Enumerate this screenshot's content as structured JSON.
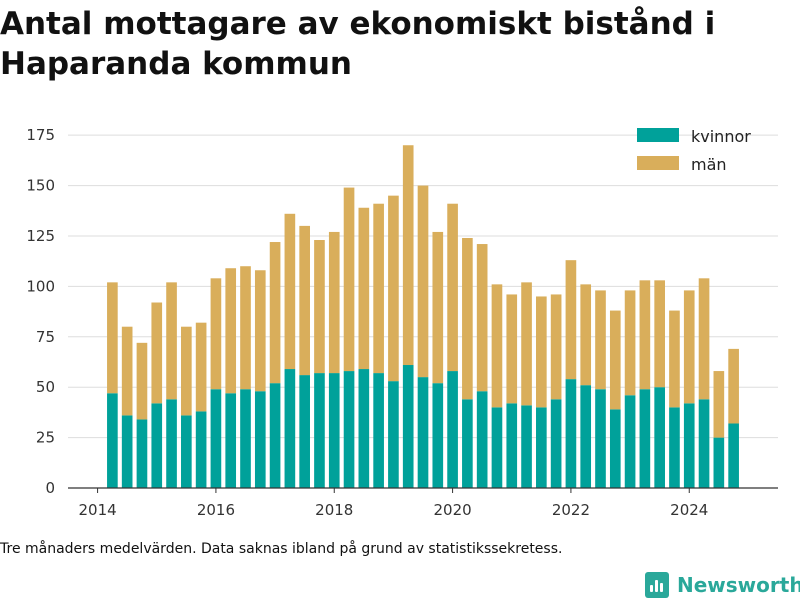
{
  "title": "Antal mottagare av ekonomiskt bistånd i Haparanda kommun",
  "note": "Tre månaders medelvärden. Data saknas ibland på grund av statistikssekretess.",
  "brand": "Newsworthy",
  "colors": {
    "kvinnor": "#00a19a",
    "man": "#d9ae5b",
    "grid": "#dddddd",
    "axis": "#333333"
  },
  "chart_data": {
    "type": "bar",
    "stacked": true,
    "x": [
      "2014-04",
      "2014-07",
      "2014-10",
      "2015-01",
      "2015-04",
      "2015-07",
      "2015-10",
      "2016-01",
      "2016-04",
      "2016-07",
      "2016-10",
      "2017-01",
      "2017-04",
      "2017-07",
      "2017-10",
      "2018-01",
      "2018-04",
      "2018-07",
      "2018-10",
      "2019-01",
      "2019-04",
      "2019-07",
      "2019-10",
      "2020-01",
      "2020-04",
      "2020-07",
      "2020-10",
      "2021-01",
      "2021-04",
      "2021-07",
      "2021-10",
      "2022-01",
      "2022-04",
      "2022-07",
      "2022-10",
      "2023-01",
      "2023-04",
      "2023-07",
      "2023-10",
      "2024-01",
      "2024-04",
      "2024-07",
      "2024-10"
    ],
    "series": [
      {
        "name": "kvinnor",
        "values": [
          47,
          36,
          34,
          42,
          44,
          36,
          38,
          49,
          47,
          49,
          48,
          52,
          59,
          56,
          57,
          57,
          58,
          59,
          57,
          53,
          61,
          55,
          52,
          58,
          44,
          48,
          40,
          42,
          41,
          40,
          44,
          54,
          51,
          49,
          39,
          46,
          49,
          50,
          40,
          42,
          44,
          25,
          32
        ]
      },
      {
        "name": "män",
        "values": [
          55,
          44,
          38,
          50,
          58,
          44,
          44,
          55,
          62,
          61,
          60,
          70,
          77,
          74,
          66,
          70,
          91,
          80,
          84,
          92,
          109,
          95,
          75,
          83,
          80,
          73,
          61,
          54,
          61,
          55,
          52,
          59,
          50,
          49,
          49,
          52,
          54,
          53,
          48,
          56,
          60,
          33,
          37
        ]
      }
    ],
    "xlim": [
      "2013-07",
      "2025-07"
    ],
    "x_ticks": [
      "2014",
      "2016",
      "2018",
      "2020",
      "2022",
      "2024"
    ],
    "ylim": [
      0,
      185
    ],
    "y_ticks": [
      0,
      25,
      50,
      75,
      100,
      125,
      150,
      175
    ],
    "grid": "horizontal",
    "legend_placement": "top-right",
    "xlabel": "",
    "ylabel": ""
  }
}
